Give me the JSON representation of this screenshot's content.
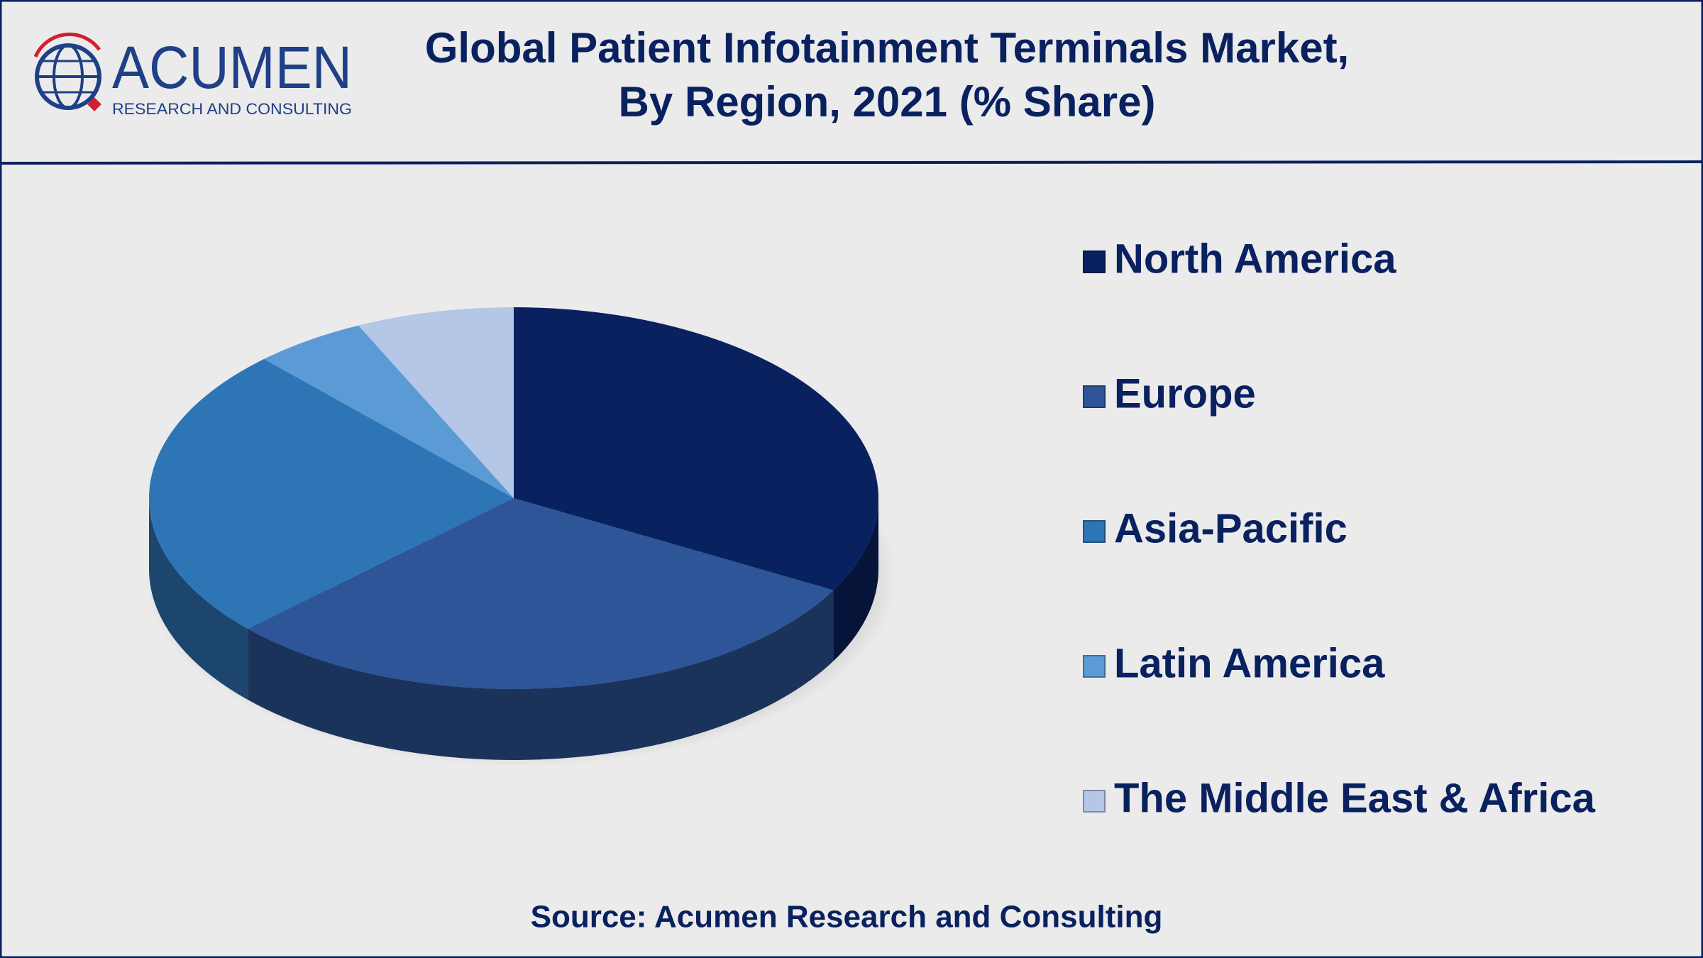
{
  "chart_data": {
    "type": "pie",
    "title": [
      "Global Patient Infotainment Terminals Market,",
      "By Region, 2021 (% Share)"
    ],
    "logo": {
      "name": "ACUMEN",
      "tagline": "RESEARCH AND CONSULTING"
    },
    "source": "Source: Acumen Research and Consulting",
    "categories": [
      "North America",
      "Europe",
      "Asia-Pacific",
      "Latin America",
      "The Middle East & Africa"
    ],
    "values": [
      33,
      30,
      25,
      5,
      7
    ],
    "colors": [
      "#0a2160",
      "#2d5597",
      "#2e75b6",
      "#5b9bd5",
      "#b4c7e7"
    ],
    "legend": "right"
  }
}
